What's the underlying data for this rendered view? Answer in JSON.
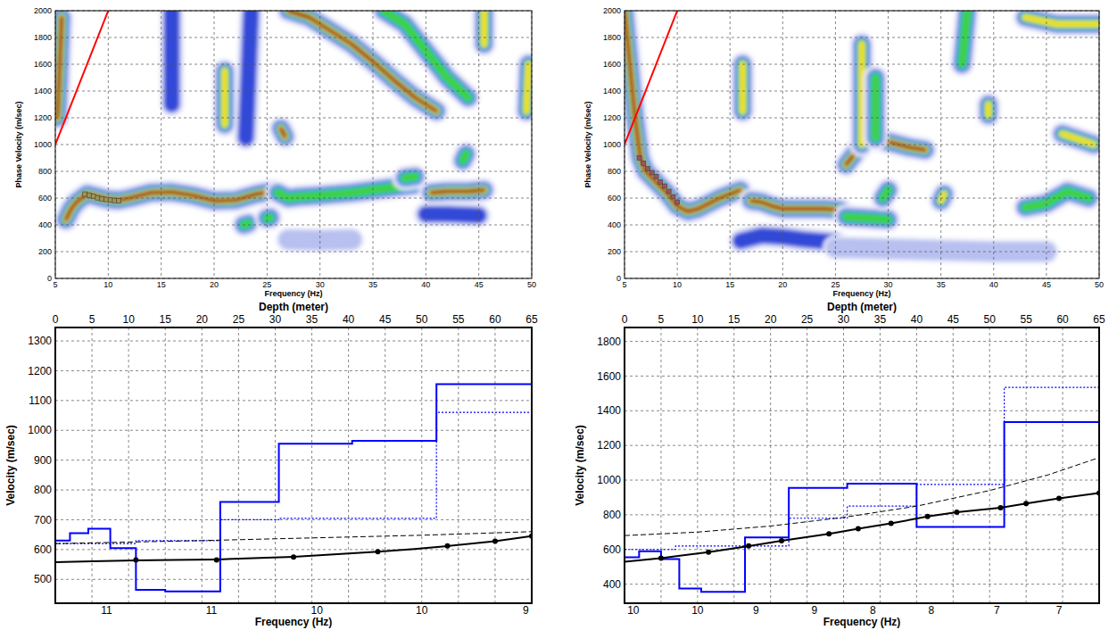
{
  "chart_data": [
    {
      "type": "heatmap",
      "xlabel": "Frequency (Hz)",
      "ylabel": "Phase Velocity (m/sec)",
      "xlim": [
        5,
        50
      ],
      "ylim": [
        0,
        2000
      ],
      "xticks": [
        5,
        10,
        15,
        20,
        25,
        30,
        35,
        40,
        45,
        50
      ],
      "yticks": [
        0,
        200,
        400,
        600,
        800,
        1000,
        1200,
        1400,
        1600,
        1800,
        2000
      ],
      "grid": true,
      "ridges": [
        {
          "x": [
            6,
            6.5,
            7,
            8,
            9,
            10,
            11,
            12,
            14,
            16,
            18,
            20,
            22,
            24,
            25.5
          ],
          "y": [
            440,
            520,
            570,
            630,
            610,
            590,
            585,
            600,
            640,
            645,
            620,
            580,
            585,
            630,
            650
          ],
          "energy": 5
        },
        {
          "x": [
            26,
            27,
            28,
            30,
            33,
            36,
            39
          ],
          "y": [
            640,
            600,
            610,
            620,
            640,
            670,
            700
          ],
          "energy": 3
        },
        {
          "x": [
            40.5,
            42,
            44,
            45.5
          ],
          "y": [
            640,
            650,
            650,
            660
          ],
          "energy": 5
        },
        {
          "x": [
            27,
            29,
            31,
            33,
            35,
            37,
            39,
            41
          ],
          "y": [
            2000,
            1950,
            1850,
            1750,
            1620,
            1480,
            1350,
            1250
          ],
          "energy": 5
        },
        {
          "x": [
            36,
            38,
            40,
            42,
            44
          ],
          "y": [
            2000,
            1900,
            1700,
            1500,
            1350
          ],
          "energy": 3
        },
        {
          "x": [
            26.3,
            26.7
          ],
          "y": [
            1120,
            1060
          ],
          "energy": 5
        },
        {
          "x": [
            21,
            21
          ],
          "y": [
            1150,
            1550
          ],
          "energy": 4
        },
        {
          "x": [
            16,
            16
          ],
          "y": [
            1300,
            2000
          ],
          "energy": 2
        },
        {
          "x": [
            5.2,
            5.6
          ],
          "y": [
            1200,
            1950
          ],
          "energy": 5
        },
        {
          "x": [
            23,
            23.5
          ],
          "y": [
            1050,
            2000
          ],
          "energy": 2
        },
        {
          "x": [
            43.5,
            43.8
          ],
          "y": [
            880,
            930
          ],
          "energy": 3
        },
        {
          "x": [
            45.5,
            45.5
          ],
          "y": [
            1750,
            2000
          ],
          "energy": 4
        },
        {
          "x": [
            49.5,
            49.7
          ],
          "y": [
            1250,
            1600
          ],
          "energy": 4
        },
        {
          "x": [
            22.8,
            23.2
          ],
          "y": [
            400,
            410
          ],
          "energy": 3
        },
        {
          "x": [
            25,
            25.3
          ],
          "y": [
            450,
            455
          ],
          "energy": 3
        },
        {
          "x": [
            27,
            30,
            33
          ],
          "y": [
            290,
            285,
            290
          ],
          "energy": 1
        },
        {
          "x": [
            40,
            42,
            45
          ],
          "y": [
            480,
            480,
            470
          ],
          "energy": 2
        },
        {
          "x": [
            38,
            39
          ],
          "y": [
            750,
            760
          ],
          "energy": 3
        }
      ],
      "picks": {
        "x": [
          7.8,
          8.2,
          8.6,
          9,
          9.4,
          9.8,
          10.2,
          10.6,
          11
        ],
        "y": [
          630,
          622,
          612,
          602,
          595,
          590,
          585,
          582,
          580
        ],
        "color": "#9c9460",
        "marker": "square"
      },
      "red_line": {
        "x": [
          5,
          10
        ],
        "y": [
          1000,
          2000
        ],
        "color": "#ff0000"
      }
    },
    {
      "type": "heatmap",
      "xlabel": "Frequency (Hz)",
      "ylabel": "Phase Velocity (m/sec)",
      "xlim": [
        5,
        50
      ],
      "ylim": [
        0,
        2000
      ],
      "xticks": [
        5,
        10,
        15,
        20,
        25,
        30,
        35,
        40,
        45,
        50
      ],
      "yticks": [
        0,
        200,
        400,
        600,
        800,
        1000,
        1200,
        1400,
        1600,
        1800,
        2000
      ],
      "grid": true,
      "ridges": [
        {
          "x": [
            5,
            5.5,
            6,
            6.5,
            7,
            8,
            9,
            10,
            11,
            12,
            13,
            14,
            15,
            16
          ],
          "y": [
            2000,
            1600,
            1200,
            900,
            800,
            720,
            640,
            540,
            500,
            520,
            560,
            600,
            630,
            660
          ],
          "energy": 5
        },
        {
          "x": [
            17,
            18,
            19,
            20,
            22,
            24,
            25.5
          ],
          "y": [
            580,
            570,
            540,
            520,
            520,
            520,
            510
          ],
          "energy": 5
        },
        {
          "x": [
            16.2,
            16.2
          ],
          "y": [
            1250,
            1600
          ],
          "energy": 4
        },
        {
          "x": [
            26,
            27,
            28,
            29,
            30,
            32,
            33.5
          ],
          "y": [
            850,
            950,
            1060,
            1040,
            1020,
            980,
            960
          ],
          "energy": 5
        },
        {
          "x": [
            27.5,
            27.5
          ],
          "y": [
            1000,
            1750
          ],
          "energy": 4
        },
        {
          "x": [
            28.8,
            28.8
          ],
          "y": [
            1050,
            1500
          ],
          "energy": 3
        },
        {
          "x": [
            35,
            35.3
          ],
          "y": [
            580,
            630
          ],
          "energy": 4
        },
        {
          "x": [
            39.5,
            39.5
          ],
          "y": [
            1220,
            1300
          ],
          "energy": 4
        },
        {
          "x": [
            37,
            37.5
          ],
          "y": [
            1600,
            2000
          ],
          "energy": 3
        },
        {
          "x": [
            46.5,
            48,
            49.5
          ],
          "y": [
            1080,
            1040,
            1000
          ],
          "energy": 4
        },
        {
          "x": [
            16,
            18,
            20,
            22,
            25
          ],
          "y": [
            280,
            320,
            310,
            290,
            270
          ],
          "energy": 2
        },
        {
          "x": [
            26,
            28,
            30
          ],
          "y": [
            460,
            450,
            440
          ],
          "energy": 3
        },
        {
          "x": [
            43,
            45,
            47,
            49
          ],
          "y": [
            530,
            560,
            650,
            600
          ],
          "energy": 3
        },
        {
          "x": [
            25,
            30,
            35,
            40,
            45
          ],
          "y": [
            230,
            220,
            210,
            200,
            200
          ],
          "energy": 1
        },
        {
          "x": [
            43,
            46,
            50
          ],
          "y": [
            1950,
            1900,
            1900
          ],
          "energy": 4
        },
        {
          "x": [
            29.5,
            30
          ],
          "y": [
            600,
            660
          ],
          "energy": 3
        }
      ],
      "picks": {
        "x": [
          6.4,
          6.8,
          7.2,
          7.6,
          8,
          8.4,
          8.8,
          9.2,
          9.6,
          10
        ],
        "y": [
          900,
          860,
          820,
          790,
          760,
          720,
          690,
          650,
          610,
          570
        ],
        "color": "#9c5070",
        "marker": "square"
      },
      "red_line": {
        "x": [
          5,
          10
        ],
        "y": [
          1000,
          2000
        ],
        "color": "#ff0000"
      }
    },
    {
      "type": "line",
      "xlabel": "Depth (meter)",
      "x2label": "Frequency (Hz)",
      "ylabel": "Velocity (m/sec)",
      "xlim": [
        0,
        65
      ],
      "xticks": [
        0,
        5,
        10,
        15,
        20,
        25,
        30,
        35,
        40,
        45,
        50,
        55,
        60,
        65
      ],
      "x2ticks": [
        {
          "value": 7,
          "label": "11"
        },
        {
          "value": 21.3,
          "label": "11"
        },
        {
          "value": 35.7,
          "label": "10"
        },
        {
          "value": 50,
          "label": "10"
        },
        {
          "value": 64.2,
          "label": "9"
        }
      ],
      "ylim": [
        420,
        1345
      ],
      "yticks": [
        500,
        600,
        700,
        800,
        900,
        1000,
        1100,
        1200,
        1300
      ],
      "grid": true,
      "series": [
        {
          "type": "step",
          "color": "#0000ff",
          "line_style": "solid",
          "bins": [
            0,
            2,
            4.5,
            7.5,
            11,
            15,
            22.5,
            30.5,
            40.5,
            52,
            65
          ],
          "values": [
            630,
            655,
            670,
            605,
            465,
            460,
            760,
            955,
            965,
            1155
          ]
        },
        {
          "type": "step",
          "color": "#0000ff",
          "line_style": "dotted",
          "bins": [
            0,
            7,
            11,
            22.5,
            30.5,
            52,
            65
          ],
          "values": [
            620,
            620,
            630,
            700,
            705,
            1060
          ]
        },
        {
          "type": "line",
          "color": "#000000",
          "line_style": "solid",
          "marker": "none",
          "x": [
            0,
            5,
            11,
            16,
            22,
            27,
            32.5,
            38,
            44,
            49,
            53.5,
            60,
            65
          ],
          "values": [
            558,
            561,
            564,
            565,
            567,
            571,
            576,
            584,
            593,
            602,
            612,
            628,
            645
          ]
        },
        {
          "type": "scatter",
          "color": "#000000",
          "marker": "circle",
          "x": [
            11,
            22,
            32.5,
            44,
            53.5,
            60,
            65
          ],
          "values": [
            565,
            565,
            575,
            593,
            612,
            628,
            645
          ]
        },
        {
          "type": "line",
          "color": "#000000",
          "line_style": "dashed",
          "marker": "none",
          "x": [
            0,
            10,
            20,
            30,
            40,
            50,
            65
          ],
          "values": [
            620,
            625,
            630,
            636,
            642,
            648,
            660
          ]
        }
      ]
    },
    {
      "type": "line",
      "xlabel": "Depth (meter)",
      "x2label": "Frequency (Hz)",
      "ylabel": "Velocity (m/sec)",
      "xlim": [
        0,
        65
      ],
      "xticks": [
        0,
        5,
        10,
        15,
        20,
        25,
        30,
        35,
        40,
        45,
        50,
        55,
        60,
        65
      ],
      "x2ticks": [
        {
          "value": 1.2,
          "label": "10"
        },
        {
          "value": 10,
          "label": "10"
        },
        {
          "value": 18,
          "label": "9"
        },
        {
          "value": 26,
          "label": "9"
        },
        {
          "value": 34,
          "label": "8"
        },
        {
          "value": 42,
          "label": "8"
        },
        {
          "value": 51,
          "label": "7"
        },
        {
          "value": 59.5,
          "label": "7"
        }
      ],
      "ylim": [
        290,
        1880
      ],
      "yticks": [
        400,
        600,
        800,
        1000,
        1200,
        1400,
        1600,
        1800
      ],
      "grid": true,
      "series": [
        {
          "type": "step",
          "color": "#0000ff",
          "line_style": "solid",
          "bins": [
            0,
            2,
            5,
            7.5,
            10.5,
            16.5,
            22.5,
            30.5,
            40,
            52,
            65
          ],
          "values": [
            555,
            590,
            545,
            375,
            355,
            670,
            955,
            980,
            730,
            1335
          ]
        },
        {
          "type": "step",
          "color": "#0000ff",
          "line_style": "dotted",
          "bins": [
            0,
            7,
            16,
            22.5,
            30.5,
            40,
            52,
            65
          ],
          "values": [
            600,
            620,
            620,
            780,
            850,
            975,
            1535
          ]
        },
        {
          "type": "line",
          "color": "#000000",
          "line_style": "solid",
          "marker": "none",
          "x": [
            0,
            5,
            11.5,
            17,
            21.5,
            28,
            32,
            36.5,
            41.5,
            45.5,
            51.5,
            55,
            59.5,
            65
          ],
          "values": [
            530,
            550,
            585,
            620,
            650,
            690,
            720,
            750,
            790,
            815,
            840,
            865,
            895,
            925
          ]
        },
        {
          "type": "scatter",
          "color": "#000000",
          "marker": "circle",
          "x": [
            5,
            11.5,
            17,
            21.5,
            28,
            32,
            36.5,
            41.5,
            45.5,
            51.5,
            55,
            59.5,
            65
          ],
          "values": [
            550,
            585,
            620,
            650,
            690,
            720,
            750,
            790,
            815,
            840,
            865,
            895,
            925
          ]
        },
        {
          "type": "line",
          "color": "#000000",
          "line_style": "dashed",
          "marker": "none",
          "x": [
            0,
            10,
            20,
            30,
            40,
            50,
            58,
            65
          ],
          "values": [
            680,
            700,
            735,
            785,
            850,
            940,
            1030,
            1130
          ]
        }
      ]
    }
  ]
}
